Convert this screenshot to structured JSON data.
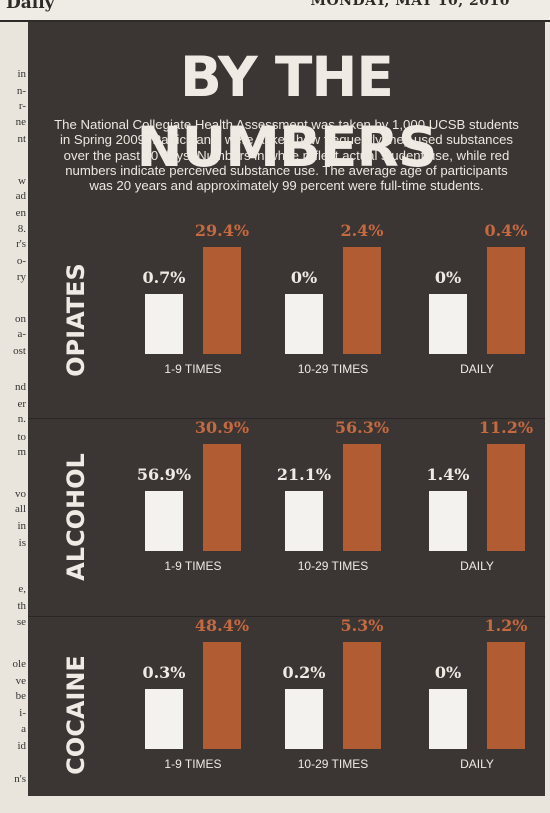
{
  "newspaper": {
    "masthead_left": "Daily",
    "masthead_right": "MONDAY, MAY 10, 2010",
    "column_fragments": [
      "in",
      "n-",
      "r-",
      "ne",
      "nt",
      "w",
      "ad",
      "en",
      "8.",
      "r's",
      "o-",
      "ry",
      "on",
      "a-",
      "ost",
      "nd",
      "er",
      "n.",
      "to",
      "m",
      "vo",
      "all",
      "in",
      "is",
      "e,",
      "th",
      "se",
      "ole",
      "ve",
      "be",
      "i-",
      "a",
      "id",
      "n's"
    ]
  },
  "infographic": {
    "title": "BY THE NUMBERS",
    "intro": "The National Collegiate Health Assessment was taken by 1,000 UCSB students in Spring 2009. Participants were asked how frequently they used substances over the past 30 days. Numbers in white reflect actual student use, while red numbers indicate perceived substance use. The average age of participants was 20 years and approximately 99 percent were full-time students.",
    "colors": {
      "background": "#3b3634",
      "actual": "#f4f2ef",
      "perceived": "#b25c34",
      "perceived_text": "#c7693f"
    }
  },
  "chart_data": [
    {
      "type": "bar",
      "section": "OPIATES",
      "categories": [
        "1-9 TIMES",
        "10-29 TIMES",
        "DAILY"
      ],
      "series": [
        {
          "values": [
            0.7,
            0,
            0
          ],
          "labels": [
            "0.7%",
            "0%",
            "0%"
          ],
          "color": "#f4f2ef"
        },
        {
          "values": [
            29.4,
            2.4,
            0.4
          ],
          "labels": [
            "29.4%",
            "2.4%",
            "0.4%"
          ],
          "color": "#b25c34"
        }
      ]
    },
    {
      "type": "bar",
      "section": "ALCOHOL",
      "categories": [
        "1-9 TIMES",
        "10-29 TIMES",
        "DAILY"
      ],
      "series": [
        {
          "values": [
            56.9,
            21.1,
            1.4
          ],
          "labels": [
            "56.9%",
            "21.1%",
            "1.4%"
          ],
          "color": "#f4f2ef"
        },
        {
          "values": [
            30.9,
            56.3,
            11.2
          ],
          "labels": [
            "30.9%",
            "56.3%",
            "11.2%"
          ],
          "color": "#b25c34"
        }
      ]
    },
    {
      "type": "bar",
      "section": "COCAINE",
      "categories": [
        "1-9 TIMES",
        "10-29 TIMES",
        "DAILY"
      ],
      "series": [
        {
          "values": [
            0.3,
            0.2,
            0
          ],
          "labels": [
            "0.3%",
            "0.2%",
            "0%"
          ],
          "color": "#f4f2ef"
        },
        {
          "values": [
            48.4,
            5.3,
            1.2
          ],
          "labels": [
            "48.4%",
            "5.3%",
            "1.2%"
          ],
          "color": "#b25c34"
        }
      ]
    }
  ]
}
